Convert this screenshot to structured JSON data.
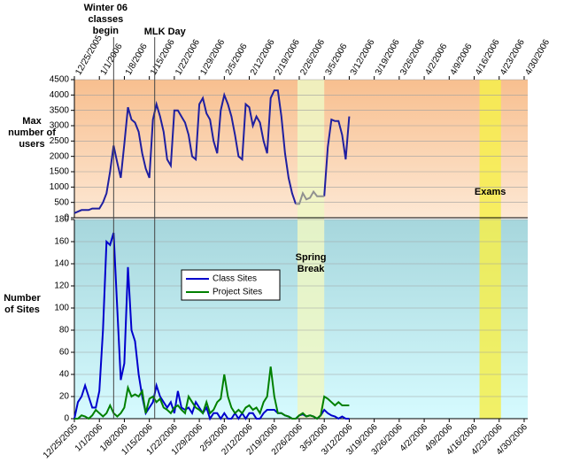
{
  "chart_data": [
    {
      "type": "line",
      "ylabel": "Max number of users",
      "x": [
        0,
        1,
        2,
        3,
        4,
        5,
        6,
        7,
        8,
        9,
        10,
        11,
        12,
        13,
        14,
        15,
        16,
        17,
        18,
        19,
        20,
        21,
        22,
        23,
        24,
        25,
        26,
        27,
        28,
        29,
        30,
        31,
        32,
        33,
        34,
        35,
        36,
        37,
        38,
        39,
        40,
        41,
        42,
        43,
        44,
        45,
        46,
        47,
        48,
        49,
        50,
        51,
        52,
        53,
        54,
        55,
        56,
        57,
        58,
        59,
        60,
        61,
        62,
        63,
        64,
        65,
        66,
        67,
        68,
        69,
        70,
        71,
        72,
        73,
        74,
        75,
        76,
        77
      ],
      "series": [
        {
          "color": "#1f1fa0",
          "values": [
            150,
            200,
            250,
            250,
            250,
            300,
            300,
            300,
            500,
            800,
            1500,
            2350,
            1800,
            1300,
            2400,
            3600,
            3200,
            3100,
            2800,
            2100,
            1600,
            1300,
            3200,
            3700,
            3300,
            2800,
            1900,
            1700,
            3500,
            3500,
            3300,
            3100,
            2700,
            2000,
            1900,
            3700,
            3900,
            3400,
            3200,
            2500,
            2100,
            3500,
            4000,
            3700,
            3300,
            2700,
            2000,
            1900,
            3700,
            3600,
            3000,
            3300,
            3100,
            2500,
            2100,
            3900,
            4150,
            4150,
            3300,
            2100,
            1300,
            800,
            450,
            null,
            null,
            null,
            null,
            null,
            null,
            null,
            700,
            2300,
            3200,
            3150,
            3150,
            2700,
            1900,
            3300
          ]
        },
        {
          "color": "#909090",
          "values": [
            null,
            null,
            null,
            null,
            null,
            null,
            null,
            null,
            null,
            null,
            null,
            null,
            null,
            null,
            null,
            null,
            null,
            null,
            null,
            null,
            null,
            null,
            null,
            null,
            null,
            null,
            null,
            null,
            null,
            null,
            null,
            null,
            null,
            null,
            null,
            null,
            null,
            null,
            null,
            null,
            null,
            null,
            null,
            null,
            null,
            null,
            null,
            null,
            null,
            null,
            null,
            null,
            null,
            null,
            null,
            null,
            null,
            null,
            null,
            null,
            null,
            null,
            450,
            450,
            800,
            600,
            650,
            850,
            700,
            700,
            700,
            null,
            null,
            null,
            null,
            null,
            null,
            null
          ]
        }
      ],
      "xlim": [
        0,
        127
      ],
      "ylim": [
        0,
        4500
      ],
      "yticks": [
        0,
        500,
        1000,
        1500,
        2000,
        2500,
        3000,
        3500,
        4000,
        4500
      ],
      "xticks": [
        {
          "value": 0,
          "label": "12/25/2005"
        },
        {
          "value": 7,
          "label": "1/1/2006"
        },
        {
          "value": 14,
          "label": "1/8/2006"
        },
        {
          "value": 21,
          "label": "1/15/2006"
        },
        {
          "value": 28,
          "label": "1/22/2006"
        },
        {
          "value": 35,
          "label": "1/29/2006"
        },
        {
          "value": 42,
          "label": "2/5/2006"
        },
        {
          "value": 49,
          "label": "2/12/2006"
        },
        {
          "value": 56,
          "label": "2/19/2006"
        },
        {
          "value": 63,
          "label": "2/26/2006"
        },
        {
          "value": 70,
          "label": "3/5/2006"
        },
        {
          "value": 77,
          "label": "3/12/2006"
        },
        {
          "value": 84,
          "label": "3/19/2006"
        },
        {
          "value": 91,
          "label": "3/26/2006"
        },
        {
          "value": 98,
          "label": "4/2/2006"
        },
        {
          "value": 105,
          "label": "4/9/2006"
        },
        {
          "value": 112,
          "label": "4/16/2006"
        },
        {
          "value": 119,
          "label": "4/23/2006"
        },
        {
          "value": 126,
          "label": "4/30/2006"
        }
      ],
      "bands": [
        {
          "label": "Spring Break",
          "start": 62.5,
          "end": 70,
          "color": "#eef7c4"
        },
        {
          "label": "Exams",
          "start": 113.5,
          "end": 119.5,
          "color": "#f6ef4c"
        }
      ],
      "annotations": [
        {
          "text": "Winter 06 classes begin",
          "x": 11
        },
        {
          "text": "MLK Day",
          "x": 22.5
        }
      ]
    },
    {
      "type": "line",
      "ylabel": "Number of Sites",
      "x": [
        0,
        1,
        2,
        3,
        4,
        5,
        6,
        7,
        8,
        9,
        10,
        11,
        12,
        13,
        14,
        15,
        16,
        17,
        18,
        19,
        20,
        21,
        22,
        23,
        24,
        25,
        26,
        27,
        28,
        29,
        30,
        31,
        32,
        33,
        34,
        35,
        36,
        37,
        38,
        39,
        40,
        41,
        42,
        43,
        44,
        45,
        46,
        47,
        48,
        49,
        50,
        51,
        52,
        53,
        54,
        55,
        56,
        57,
        58,
        59,
        60,
        61,
        62,
        63,
        64,
        65,
        66,
        67,
        68,
        69,
        70,
        71,
        72,
        73,
        74,
        75,
        76,
        77
      ],
      "series": [
        {
          "name": "Class Sites",
          "color": "#0000cc",
          "values": [
            0,
            15,
            20,
            30,
            20,
            10,
            10,
            25,
            80,
            160,
            157,
            168,
            100,
            35,
            50,
            137,
            80,
            70,
            40,
            20,
            5,
            10,
            15,
            30,
            20,
            15,
            10,
            15,
            5,
            25,
            10,
            8,
            10,
            5,
            15,
            10,
            5,
            10,
            0,
            5,
            5,
            0,
            5,
            0,
            0,
            5,
            0,
            5,
            0,
            5,
            5,
            0,
            0,
            5,
            8,
            8,
            8,
            5,
            5,
            3,
            2,
            0,
            0,
            3,
            4,
            2,
            3,
            2,
            0,
            3,
            8,
            5,
            3,
            2,
            0,
            2,
            0,
            0
          ]
        },
        {
          "name": "Project Sites",
          "color": "#008000",
          "values": [
            0,
            0,
            3,
            2,
            0,
            3,
            8,
            5,
            2,
            5,
            12,
            5,
            2,
            5,
            10,
            28,
            20,
            22,
            20,
            25,
            5,
            18,
            20,
            15,
            18,
            10,
            8,
            5,
            10,
            12,
            8,
            5,
            20,
            15,
            10,
            8,
            5,
            15,
            5,
            8,
            15,
            18,
            40,
            20,
            10,
            5,
            8,
            5,
            10,
            12,
            8,
            10,
            5,
            15,
            20,
            47,
            20,
            5,
            5,
            3,
            2,
            0,
            0,
            3,
            5,
            2,
            3,
            2,
            0,
            3,
            20,
            18,
            15,
            12,
            15,
            12,
            12,
            12
          ]
        }
      ],
      "xlim": [
        0,
        127
      ],
      "ylim": [
        0,
        180
      ],
      "yticks": [
        0,
        20,
        40,
        60,
        80,
        100,
        120,
        140,
        160,
        180
      ],
      "xticks": [
        {
          "value": 0,
          "label": "12/25/2005"
        },
        {
          "value": 7,
          "label": "1/1/2006"
        },
        {
          "value": 14,
          "label": "1/8/2006"
        },
        {
          "value": 21,
          "label": "1/15/2006"
        },
        {
          "value": 28,
          "label": "1/22/2006"
        },
        {
          "value": 35,
          "label": "1/29/2006"
        },
        {
          "value": 42,
          "label": "2/5/2006"
        },
        {
          "value": 49,
          "label": "2/12/2006"
        },
        {
          "value": 56,
          "label": "2/19/2006"
        },
        {
          "value": 63,
          "label": "2/26/2006"
        },
        {
          "value": 70,
          "label": "3/5/2006"
        },
        {
          "value": 77,
          "label": "3/12/2006"
        },
        {
          "value": 84,
          "label": "3/19/2006"
        },
        {
          "value": 91,
          "label": "3/26/2006"
        },
        {
          "value": 98,
          "label": "4/2/2006"
        },
        {
          "value": 105,
          "label": "4/9/2006"
        },
        {
          "value": 112,
          "label": "4/16/2006"
        },
        {
          "value": 119,
          "label": "4/23/2006"
        },
        {
          "value": 126,
          "label": "4/30/2006"
        }
      ],
      "legend": "center-left"
    }
  ]
}
